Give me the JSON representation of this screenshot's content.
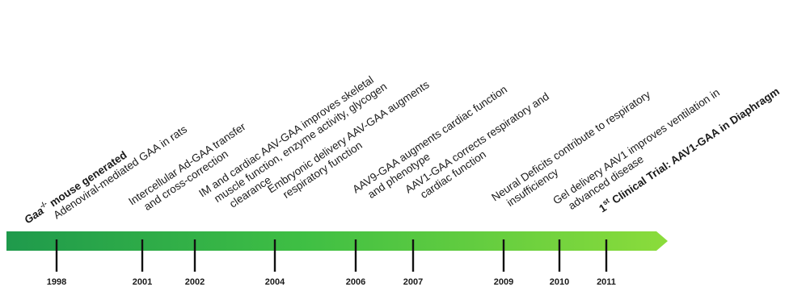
{
  "colors": {
    "arrow_start": "#1f9a4c",
    "arrow_mid": "#3fbf44",
    "arrow_end": "#8bdc3b",
    "text": "#1a1a1a",
    "tick": "#111111"
  },
  "events": [
    {
      "year": "1998",
      "lines": [
        "Gaa-/- mouse generated"
      ],
      "bold": true,
      "rich": "gaa"
    },
    {
      "year": "1998",
      "lines": [
        "Adenoviral-mediated GAA in rats"
      ]
    },
    {
      "year": "2001",
      "lines": [
        "Intercellular Ad-GAA transfer",
        "and cross-correction"
      ]
    },
    {
      "year": "2002",
      "lines": [
        "IM and cardiac AAV-GAA improves skeletal",
        "muscle function, enzyme activity, glycogen",
        "clearance"
      ]
    },
    {
      "year": "2004",
      "lines": [
        "Embryonic delivery AAV-GAA augments",
        "respiratory function"
      ]
    },
    {
      "year": "2006",
      "lines": [
        "AAV9-GAA augments cardiac function",
        "and phenotype"
      ]
    },
    {
      "year": "2007",
      "lines": [
        "AAV1-GAA corrects respiratory and",
        "cardiac function"
      ]
    },
    {
      "year": "2009",
      "lines": [
        "Neural Deficits contribute to respiratory",
        "insufficiency"
      ]
    },
    {
      "year": "2010",
      "lines": [
        "Gel delivery AAV1 improves ventilation in",
        "advanced disease"
      ]
    },
    {
      "year": "2011",
      "lines": [
        "1st Clinical Trial: AAV1-GAA in Diaphragm"
      ],
      "bold": true,
      "rich": "first"
    }
  ],
  "years": [
    "1998",
    "2001",
    "2002",
    "2004",
    "2006",
    "2007",
    "2009",
    "2010",
    "2011"
  ]
}
